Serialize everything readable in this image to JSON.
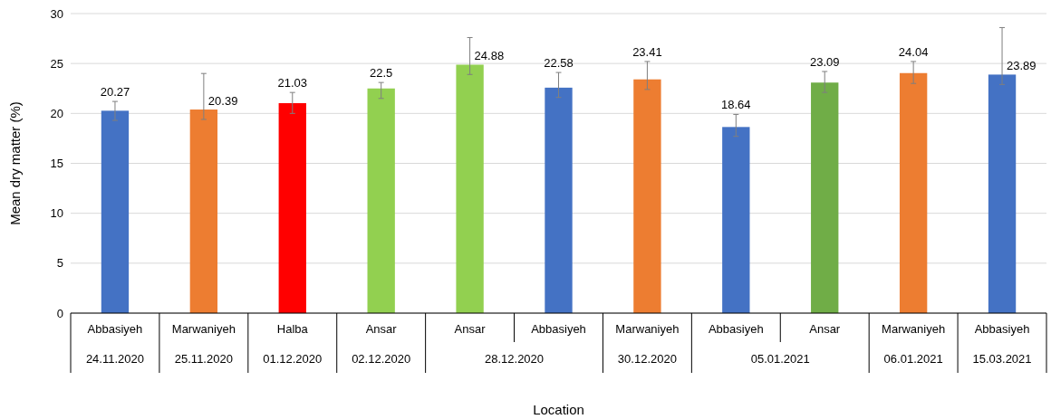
{
  "chart_data": {
    "type": "bar",
    "xlabel": "Location",
    "ylabel": "Mean dry matter (%)",
    "categories": [
      "Abbasiyeh",
      "Marwaniyeh",
      "Halba",
      "Ansar",
      "Ansar",
      "Abbasiyeh",
      "Marwaniyeh",
      "Abbasiyeh",
      "Ansar",
      "Marwaniyeh",
      "Abbasiyeh"
    ],
    "values": [
      20.27,
      20.39,
      21.03,
      22.5,
      24.88,
      22.58,
      23.41,
      18.64,
      23.09,
      24.04,
      23.89
    ],
    "colors": [
      "#4472c4",
      "#ed7d31",
      "#ff0000",
      "#92d050",
      "#92d050",
      "#4472c4",
      "#ed7d31",
      "#4472c4",
      "#70ad47",
      "#ed7d31",
      "#4472c4"
    ],
    "errors": [
      [
        19.3,
        21.2
      ],
      [
        19.4,
        24.0
      ],
      [
        20.0,
        22.1
      ],
      [
        21.5,
        23.1
      ],
      [
        23.9,
        27.6
      ],
      [
        21.6,
        24.1
      ],
      [
        22.4,
        25.2
      ],
      [
        17.7,
        19.9
      ],
      [
        22.1,
        24.2
      ],
      [
        23.0,
        25.2
      ],
      [
        22.9,
        28.6
      ]
    ],
    "annotations": [
      "24.11.2020",
      "25.11.2020",
      "01.12.2020",
      "02.12.2020",
      "28.12.2020",
      "30.12.2020",
      "05.01.2021",
      "06.01.2021",
      "15.03.2021"
    ],
    "data_labels": true,
    "ylim": [
      0,
      30
    ],
    "yticks": [
      0,
      5,
      10,
      15,
      20,
      25,
      30
    ],
    "grid": "y"
  }
}
